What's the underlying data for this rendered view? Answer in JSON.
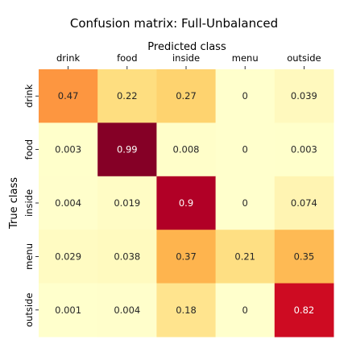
{
  "chart_data": {
    "type": "heatmap",
    "title": "Confusion matrix: Full-Unbalanced",
    "xlabel": "Predicted class",
    "ylabel": "True class",
    "x_categories": [
      "drink",
      "food",
      "inside",
      "menu",
      "outside"
    ],
    "y_categories": [
      "drink",
      "food",
      "inside",
      "menu",
      "outside"
    ],
    "values": [
      [
        0.47,
        0.22,
        0.27,
        0,
        0.039
      ],
      [
        0.003,
        0.99,
        0.008,
        0,
        0.003
      ],
      [
        0.004,
        0.019,
        0.9,
        0,
        0.074
      ],
      [
        0.029,
        0.038,
        0.37,
        0.21,
        0.35
      ],
      [
        0.001,
        0.004,
        0.18,
        0,
        0.82
      ]
    ],
    "value_labels": [
      [
        "0.47",
        "0.22",
        "0.27",
        "0",
        "0.039"
      ],
      [
        "0.003",
        "0.99",
        "0.008",
        "0",
        "0.003"
      ],
      [
        "0.004",
        "0.019",
        "0.9",
        "0",
        "0.074"
      ],
      [
        "0.029",
        "0.038",
        "0.37",
        "0.21",
        "0.35"
      ],
      [
        "0.001",
        "0.004",
        "0.18",
        "0",
        "0.82"
      ]
    ],
    "colormap": "YlOrRd",
    "colorbar": false,
    "x_axis_position": "top",
    "colors": {
      "dark_cell_text": "#ffffff",
      "light_cell_text": "#262626"
    }
  }
}
